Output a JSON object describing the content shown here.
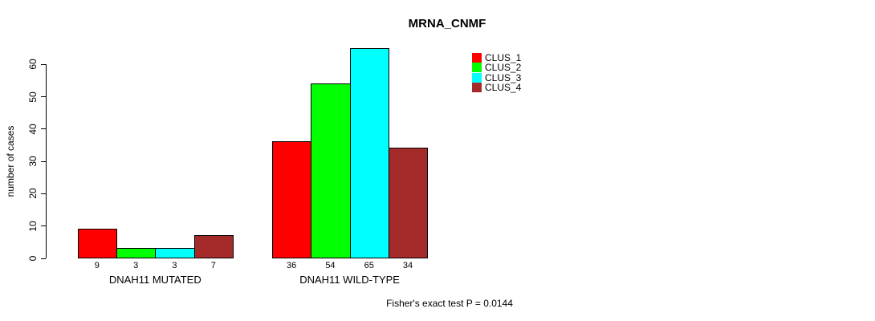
{
  "chart_data": {
    "type": "bar",
    "title": "MRNA_CNMF",
    "ylabel": "number of cases",
    "xlabel": "",
    "ylim": [
      0,
      60
    ],
    "yticks": [
      0,
      10,
      20,
      30,
      40,
      50,
      60
    ],
    "grid": false,
    "legend_position": "top-right",
    "categories": [
      "DNAH11 MUTATED",
      "DNAH11 WILD-TYPE"
    ],
    "series": [
      {
        "name": "CLUS_1",
        "color": "#FF0000",
        "values": [
          9,
          36
        ]
      },
      {
        "name": "CLUS_2",
        "color": "#00FF00",
        "values": [
          3,
          54
        ]
      },
      {
        "name": "CLUS_3",
        "color": "#00FFFF",
        "values": [
          3,
          65
        ]
      },
      {
        "name": "CLUS_4",
        "color": "#A52A2A",
        "values": [
          7,
          34
        ]
      }
    ],
    "footnote": "Fisher's exact test P = 0.0144"
  }
}
